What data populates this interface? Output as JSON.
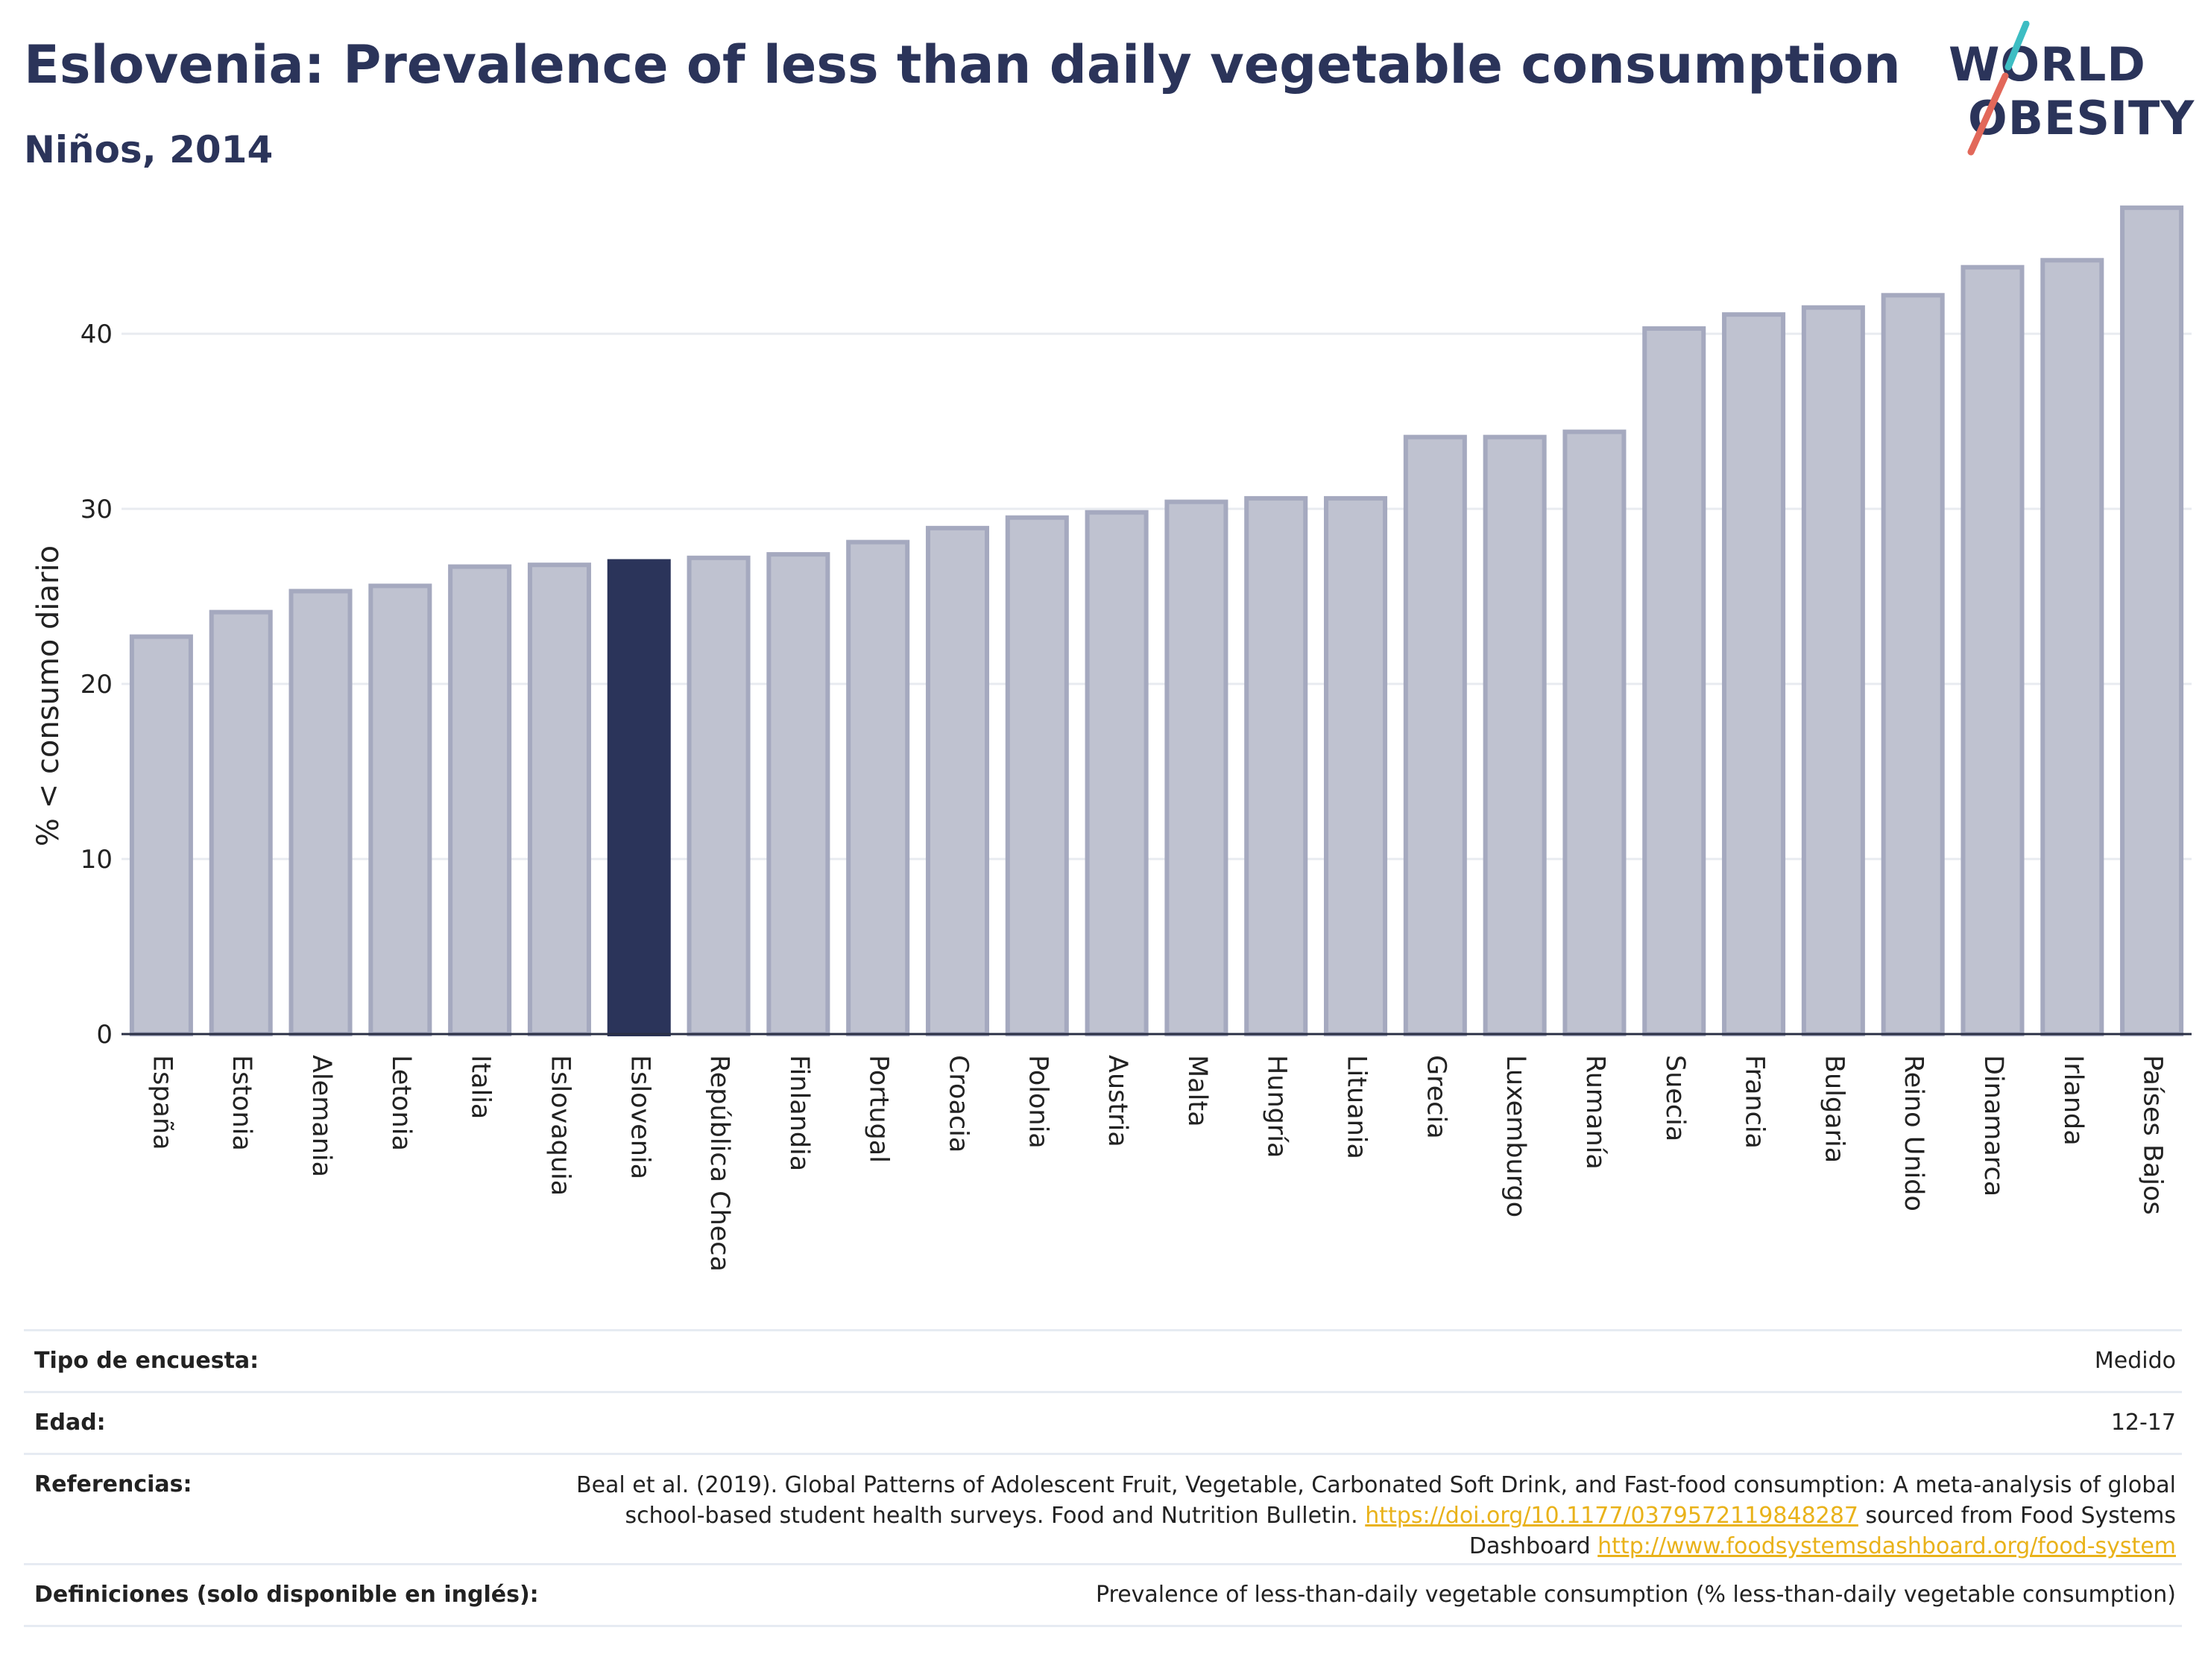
{
  "header": {
    "title": "Eslovenia: Prevalence of less than daily vegetable consumption",
    "subtitle": "Niños, 2014"
  },
  "logo": {
    "line1": "WORLD",
    "line2": "OBESITY",
    "slash_colors": [
      "#3dbdc3",
      "#e2685a"
    ]
  },
  "colors": {
    "bar_default": "#bfc2d0",
    "bar_border": "#a5a9bf",
    "bar_highlight": "#2b345a",
    "grid": "#e8ebf0",
    "link": "#e9b21a"
  },
  "chart_data": {
    "type": "bar",
    "title": "Eslovenia: Prevalence of less than daily vegetable consumption",
    "subtitle": "Niños, 2014",
    "xlabel": "",
    "ylabel": "% < consumo diario",
    "ylim": [
      0,
      48
    ],
    "yticks": [
      0,
      10,
      20,
      30,
      40
    ],
    "grid": true,
    "highlight": "Eslovenia",
    "categories": [
      "España",
      "Estonia",
      "Alemania",
      "Letonia",
      "Italia",
      "Eslovaquia",
      "Eslovenia",
      "República Checa",
      "Finlandia",
      "Portugal",
      "Croacia",
      "Polonia",
      "Austria",
      "Malta",
      "Hungría",
      "Lituania",
      "Grecia",
      "Luxemburgo",
      "Rumanía",
      "Suecia",
      "Francia",
      "Bulgaria",
      "Reino Unido",
      "Dinamarca",
      "Irlanda",
      "Países Bajos"
    ],
    "values": [
      22.7,
      24.1,
      25.3,
      25.6,
      26.7,
      26.8,
      27.0,
      27.2,
      27.4,
      28.1,
      28.9,
      29.5,
      29.8,
      30.4,
      30.6,
      30.6,
      34.1,
      34.1,
      34.4,
      40.3,
      41.1,
      41.5,
      42.2,
      43.8,
      44.2,
      47.2
    ]
  },
  "info": {
    "survey_type_label": "Tipo de encuesta:",
    "survey_type_value": "Medido",
    "age_label": "Edad:",
    "age_value": "12-17",
    "references_label": "Referencias:",
    "references_text_1": "Beal et al. (2019). Global Patterns of Adolescent Fruit, Vegetable, Carbonated Soft Drink, and Fast-food consumption: A meta-analysis of global school-based student health surveys. Food and Nutrition Bulletin. ",
    "references_link_1": "https://doi.org/10.1177/0379572119848287",
    "references_text_2": " sourced from Food Systems Dashboard ",
    "references_link_2": "http://www.foodsystemsdashboard.org/food-system",
    "definitions_label": "Definiciones (solo disponible en inglés):",
    "definitions_value": "Prevalence of less-than-daily vegetable consumption (% less-than-daily vegetable consumption)"
  }
}
